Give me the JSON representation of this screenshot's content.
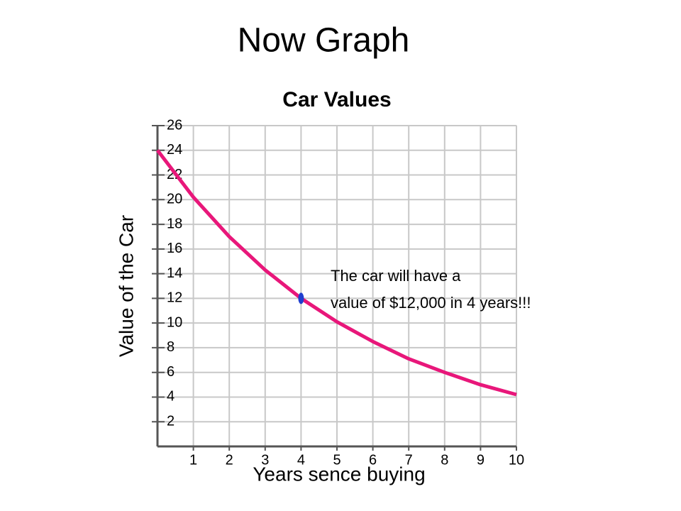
{
  "title": "Now Graph",
  "chart_data": {
    "type": "line",
    "title": "Car Values",
    "x_label": "Years sence buying",
    "y_label": "Value of the Car",
    "x": [
      0,
      1,
      2,
      3,
      4,
      5,
      6,
      7,
      8,
      9,
      10
    ],
    "series": [
      {
        "color": "#e8177a",
        "values": [
          24,
          20.2,
          17,
          14.3,
          12,
          10.1,
          8.5,
          7.1,
          6,
          5,
          4.2
        ]
      }
    ],
    "xlim": [
      0,
      10
    ],
    "xticks": [
      1,
      2,
      3,
      4,
      5,
      6,
      7,
      8,
      9,
      10
    ],
    "ylim": [
      0,
      26
    ],
    "yticks": [
      2,
      4,
      6,
      8,
      10,
      12,
      14,
      16,
      18,
      20,
      22,
      24,
      26
    ],
    "grid": true,
    "highlight": {
      "x": 4,
      "y": 12,
      "color": "#1f3fcf"
    },
    "annotation": [
      "The car will have a",
      "value of $12,000 in 4 years!!!"
    ]
  }
}
